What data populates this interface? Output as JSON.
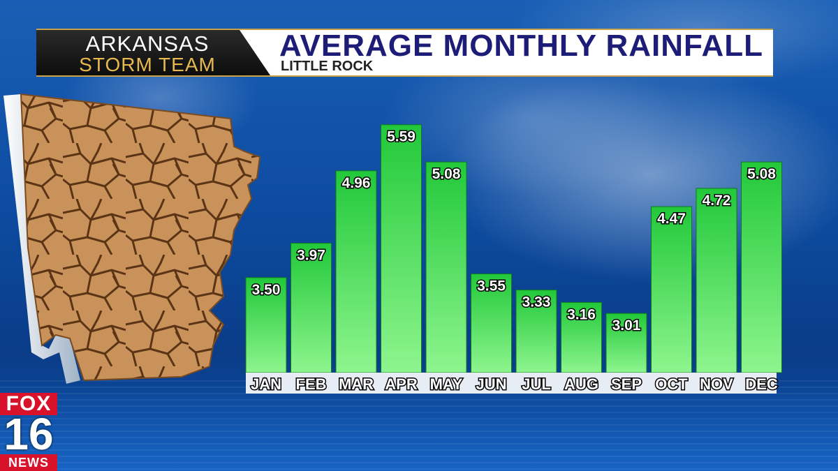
{
  "header": {
    "logo_line1": "ARKANSAS",
    "logo_line2": "STORM TEAM",
    "title": "AVERAGE MONTHLY RAINFALL",
    "subtitle": "LITTLE ROCK"
  },
  "station": {
    "top": "FOX",
    "number": "16",
    "bottom": "NEWS"
  },
  "colors": {
    "title": "#1d1d78",
    "logo_gold": "#e7b94e",
    "bar_top": "#22c83a",
    "bar_bottom": "#8ef58e",
    "station_red": "#d8122a"
  },
  "icons": {
    "map": "arkansas-dry-cracked-earth-map",
    "logo_bolt": "lightning-bolt-icon"
  },
  "chart_data": {
    "type": "bar",
    "categories": [
      "JAN",
      "FEB",
      "MAR",
      "APR",
      "MAY",
      "JUN",
      "JUL",
      "AUG",
      "SEP",
      "OCT",
      "NOV",
      "DEC"
    ],
    "values": [
      3.5,
      3.97,
      4.96,
      5.59,
      5.08,
      3.55,
      3.33,
      3.16,
      3.01,
      4.47,
      4.72,
      5.08
    ],
    "value_labels": [
      "3.50",
      "3.97",
      "4.96",
      "5.59",
      "5.08",
      "3.55",
      "3.33",
      "3.16",
      "3.01",
      "4.47",
      "4.72",
      "5.08"
    ],
    "title": "AVERAGE MONTHLY RAINFALL",
    "subtitle": "LITTLE ROCK",
    "xlabel": "",
    "ylabel": "",
    "ylim": [
      2.2,
      5.8
    ],
    "grid": false,
    "legend": "none"
  }
}
